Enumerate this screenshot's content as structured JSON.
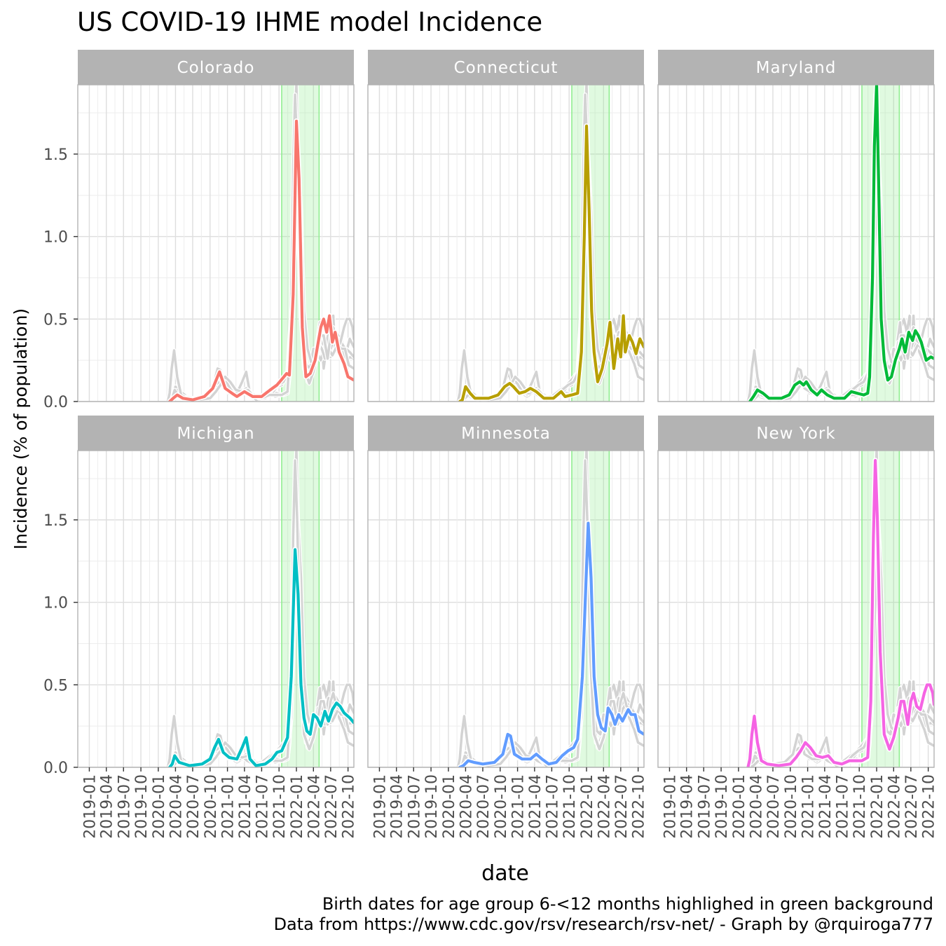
{
  "chart_data": {
    "type": "line",
    "title": "US COVID-19 IHME model Incidence",
    "xlabel": "date",
    "ylabel": "Incidence (% of population)",
    "ylim": [
      0,
      1.92
    ],
    "yticks": [
      0.0,
      0.5,
      1.0,
      1.5
    ],
    "ytick_labels": [
      "0.0",
      "0.5",
      "1.0",
      "1.5"
    ],
    "x_range": [
      "2018-11-01",
      "2022-11-01"
    ],
    "xticks": [
      "2019-01",
      "2019-04",
      "2019-07",
      "2019-10",
      "2020-01",
      "2020-04",
      "2020-07",
      "2020-10",
      "2021-01",
      "2021-04",
      "2021-07",
      "2021-10",
      "2022-01",
      "2022-04",
      "2022-07",
      "2022-10"
    ],
    "highlight": {
      "start": "2021-10-15",
      "end": "2022-05-01",
      "color": "#90ee90"
    },
    "grid": true,
    "background_series_color": "#d3d3d3",
    "panels": [
      {
        "name": "Colorado",
        "color": "#F8766D",
        "points": [
          [
            "2020-03-01",
            0.0
          ],
          [
            "2020-03-20",
            0.02
          ],
          [
            "2020-04-10",
            0.04
          ],
          [
            "2020-05-10",
            0.02
          ],
          [
            "2020-07-01",
            0.01
          ],
          [
            "2020-09-01",
            0.03
          ],
          [
            "2020-10-15",
            0.08
          ],
          [
            "2020-11-20",
            0.18
          ],
          [
            "2020-12-20",
            0.08
          ],
          [
            "2021-01-25",
            0.05
          ],
          [
            "2021-02-20",
            0.03
          ],
          [
            "2021-04-01",
            0.06
          ],
          [
            "2021-05-15",
            0.03
          ],
          [
            "2021-07-01",
            0.03
          ],
          [
            "2021-08-15",
            0.07
          ],
          [
            "2021-09-20",
            0.1
          ],
          [
            "2021-10-20",
            0.14
          ],
          [
            "2021-11-10",
            0.17
          ],
          [
            "2021-11-25",
            0.16
          ],
          [
            "2021-12-15",
            0.65
          ],
          [
            "2022-01-01",
            1.7
          ],
          [
            "2022-01-15",
            1.35
          ],
          [
            "2022-02-01",
            0.45
          ],
          [
            "2022-02-20",
            0.15
          ],
          [
            "2022-03-15",
            0.17
          ],
          [
            "2022-04-10",
            0.25
          ],
          [
            "2022-05-10",
            0.45
          ],
          [
            "2022-05-25",
            0.5
          ],
          [
            "2022-06-10",
            0.42
          ],
          [
            "2022-06-25",
            0.52
          ],
          [
            "2022-07-10",
            0.36
          ],
          [
            "2022-07-25",
            0.42
          ],
          [
            "2022-08-15",
            0.3
          ],
          [
            "2022-09-10",
            0.23
          ],
          [
            "2022-10-01",
            0.15
          ],
          [
            "2022-11-01",
            0.13
          ]
        ]
      },
      {
        "name": "Connecticut",
        "color": "#B79F00",
        "points": [
          [
            "2020-03-01",
            0.0
          ],
          [
            "2020-03-15",
            0.01
          ],
          [
            "2020-04-01",
            0.09
          ],
          [
            "2020-04-25",
            0.05
          ],
          [
            "2020-05-20",
            0.02
          ],
          [
            "2020-08-01",
            0.02
          ],
          [
            "2020-09-20",
            0.04
          ],
          [
            "2020-10-25",
            0.09
          ],
          [
            "2020-11-20",
            0.11
          ],
          [
            "2020-12-10",
            0.09
          ],
          [
            "2021-01-10",
            0.05
          ],
          [
            "2021-02-10",
            0.06
          ],
          [
            "2021-03-10",
            0.08
          ],
          [
            "2021-04-10",
            0.06
          ],
          [
            "2021-05-20",
            0.02
          ],
          [
            "2021-07-10",
            0.02
          ],
          [
            "2021-08-20",
            0.06
          ],
          [
            "2021-09-10",
            0.03
          ],
          [
            "2021-10-15",
            0.04
          ],
          [
            "2021-11-15",
            0.05
          ],
          [
            "2021-12-05",
            0.3
          ],
          [
            "2021-12-20",
            1.0
          ],
          [
            "2022-01-01",
            1.67
          ],
          [
            "2022-01-15",
            1.15
          ],
          [
            "2022-01-28",
            0.55
          ],
          [
            "2022-02-10",
            0.3
          ],
          [
            "2022-03-01",
            0.12
          ],
          [
            "2022-03-25",
            0.2
          ],
          [
            "2022-04-20",
            0.35
          ],
          [
            "2022-05-05",
            0.48
          ],
          [
            "2022-05-25",
            0.2
          ],
          [
            "2022-06-15",
            0.38
          ],
          [
            "2022-07-01",
            0.27
          ],
          [
            "2022-07-15",
            0.52
          ],
          [
            "2022-07-25",
            0.3
          ],
          [
            "2022-08-15",
            0.4
          ],
          [
            "2022-09-01",
            0.36
          ],
          [
            "2022-09-20",
            0.29
          ],
          [
            "2022-10-10",
            0.38
          ],
          [
            "2022-11-01",
            0.33
          ]
        ]
      },
      {
        "name": "Maryland",
        "color": "#00BA38",
        "points": [
          [
            "2020-03-01",
            0.0
          ],
          [
            "2020-03-20",
            0.03
          ],
          [
            "2020-04-10",
            0.07
          ],
          [
            "2020-05-10",
            0.05
          ],
          [
            "2020-06-10",
            0.02
          ],
          [
            "2020-08-15",
            0.02
          ],
          [
            "2020-09-25",
            0.04
          ],
          [
            "2020-10-25",
            0.1
          ],
          [
            "2020-11-20",
            0.12
          ],
          [
            "2020-12-10",
            0.1
          ],
          [
            "2020-12-25",
            0.12
          ],
          [
            "2021-01-20",
            0.07
          ],
          [
            "2021-02-20",
            0.04
          ],
          [
            "2021-03-15",
            0.07
          ],
          [
            "2021-04-15",
            0.04
          ],
          [
            "2021-05-20",
            0.02
          ],
          [
            "2021-07-15",
            0.02
          ],
          [
            "2021-08-20",
            0.06
          ],
          [
            "2021-09-20",
            0.05
          ],
          [
            "2021-10-25",
            0.04
          ],
          [
            "2021-11-15",
            0.05
          ],
          [
            "2021-11-25",
            0.15
          ],
          [
            "2021-12-10",
            0.75
          ],
          [
            "2021-12-20",
            1.55
          ],
          [
            "2022-01-01",
            1.93
          ],
          [
            "2022-01-12",
            1.3
          ],
          [
            "2022-01-25",
            0.5
          ],
          [
            "2022-02-10",
            0.25
          ],
          [
            "2022-03-01",
            0.13
          ],
          [
            "2022-03-20",
            0.15
          ],
          [
            "2022-04-10",
            0.25
          ],
          [
            "2022-05-01",
            0.32
          ],
          [
            "2022-05-15",
            0.38
          ],
          [
            "2022-06-01",
            0.3
          ],
          [
            "2022-06-20",
            0.42
          ],
          [
            "2022-07-10",
            0.37
          ],
          [
            "2022-07-25",
            0.43
          ],
          [
            "2022-08-10",
            0.4
          ],
          [
            "2022-08-25",
            0.36
          ],
          [
            "2022-09-20",
            0.25
          ],
          [
            "2022-10-15",
            0.27
          ],
          [
            "2022-11-01",
            0.26
          ]
        ]
      },
      {
        "name": "Michigan",
        "color": "#00BFC4",
        "points": [
          [
            "2020-03-01",
            0.0
          ],
          [
            "2020-03-15",
            0.02
          ],
          [
            "2020-03-28",
            0.07
          ],
          [
            "2020-04-20",
            0.03
          ],
          [
            "2020-06-15",
            0.01
          ],
          [
            "2020-08-20",
            0.02
          ],
          [
            "2020-10-01",
            0.05
          ],
          [
            "2020-10-25",
            0.12
          ],
          [
            "2020-11-15",
            0.17
          ],
          [
            "2020-12-10",
            0.09
          ],
          [
            "2021-01-10",
            0.06
          ],
          [
            "2021-02-20",
            0.05
          ],
          [
            "2021-03-20",
            0.12
          ],
          [
            "2021-04-10",
            0.18
          ],
          [
            "2021-04-30",
            0.05
          ],
          [
            "2021-06-01",
            0.01
          ],
          [
            "2021-07-20",
            0.02
          ],
          [
            "2021-08-25",
            0.05
          ],
          [
            "2021-09-20",
            0.09
          ],
          [
            "2021-10-15",
            0.1
          ],
          [
            "2021-11-15",
            0.18
          ],
          [
            "2021-12-05",
            0.55
          ],
          [
            "2021-12-25",
            1.32
          ],
          [
            "2022-01-10",
            1.05
          ],
          [
            "2022-01-25",
            0.5
          ],
          [
            "2022-02-10",
            0.3
          ],
          [
            "2022-02-25",
            0.22
          ],
          [
            "2022-03-15",
            0.2
          ],
          [
            "2022-04-01",
            0.32
          ],
          [
            "2022-04-20",
            0.3
          ],
          [
            "2022-05-10",
            0.25
          ],
          [
            "2022-06-01",
            0.34
          ],
          [
            "2022-06-20",
            0.28
          ],
          [
            "2022-07-10",
            0.35
          ],
          [
            "2022-08-01",
            0.39
          ],
          [
            "2022-08-20",
            0.37
          ],
          [
            "2022-09-10",
            0.33
          ],
          [
            "2022-10-10",
            0.3
          ],
          [
            "2022-11-01",
            0.27
          ]
        ]
      },
      {
        "name": "Minnesota",
        "color": "#619CFF",
        "points": [
          [
            "2020-03-01",
            0.0
          ],
          [
            "2020-03-20",
            0.01
          ],
          [
            "2020-04-15",
            0.04
          ],
          [
            "2020-05-15",
            0.03
          ],
          [
            "2020-07-01",
            0.02
          ],
          [
            "2020-09-01",
            0.03
          ],
          [
            "2020-10-15",
            0.08
          ],
          [
            "2020-11-10",
            0.2
          ],
          [
            "2020-11-25",
            0.19
          ],
          [
            "2020-12-15",
            0.08
          ],
          [
            "2021-01-25",
            0.05
          ],
          [
            "2021-03-10",
            0.05
          ],
          [
            "2021-04-10",
            0.08
          ],
          [
            "2021-05-10",
            0.05
          ],
          [
            "2021-06-15",
            0.02
          ],
          [
            "2021-07-25",
            0.03
          ],
          [
            "2021-08-25",
            0.07
          ],
          [
            "2021-09-25",
            0.1
          ],
          [
            "2021-10-25",
            0.12
          ],
          [
            "2021-11-15",
            0.17
          ],
          [
            "2021-12-10",
            0.55
          ],
          [
            "2022-01-10",
            1.48
          ],
          [
            "2022-01-25",
            1.15
          ],
          [
            "2022-02-10",
            0.55
          ],
          [
            "2022-03-01",
            0.32
          ],
          [
            "2022-03-20",
            0.24
          ],
          [
            "2022-04-10",
            0.22
          ],
          [
            "2022-04-25",
            0.36
          ],
          [
            "2022-05-15",
            0.32
          ],
          [
            "2022-06-01",
            0.26
          ],
          [
            "2022-06-20",
            0.32
          ],
          [
            "2022-07-10",
            0.28
          ],
          [
            "2022-08-10",
            0.35
          ],
          [
            "2022-08-25",
            0.32
          ],
          [
            "2022-09-15",
            0.32
          ],
          [
            "2022-10-05",
            0.22
          ],
          [
            "2022-11-01",
            0.2
          ]
        ]
      },
      {
        "name": "New York",
        "color": "#F564E3",
        "points": [
          [
            "2020-02-20",
            0.0
          ],
          [
            "2020-03-01",
            0.05
          ],
          [
            "2020-03-12",
            0.2
          ],
          [
            "2020-03-25",
            0.31
          ],
          [
            "2020-04-10",
            0.15
          ],
          [
            "2020-05-01",
            0.04
          ],
          [
            "2020-06-01",
            0.02
          ],
          [
            "2020-08-01",
            0.01
          ],
          [
            "2020-10-01",
            0.02
          ],
          [
            "2020-11-01",
            0.06
          ],
          [
            "2020-11-25",
            0.1
          ],
          [
            "2020-12-20",
            0.15
          ],
          [
            "2021-01-15",
            0.12
          ],
          [
            "2021-02-15",
            0.07
          ],
          [
            "2021-03-20",
            0.06
          ],
          [
            "2021-04-20",
            0.07
          ],
          [
            "2021-05-20",
            0.03
          ],
          [
            "2021-07-01",
            0.02
          ],
          [
            "2021-08-10",
            0.04
          ],
          [
            "2021-09-10",
            0.04
          ],
          [
            "2021-10-15",
            0.04
          ],
          [
            "2021-11-15",
            0.06
          ],
          [
            "2021-12-01",
            0.4
          ],
          [
            "2021-12-15",
            1.4
          ],
          [
            "2021-12-25",
            1.86
          ],
          [
            "2022-01-05",
            1.5
          ],
          [
            "2022-01-20",
            0.7
          ],
          [
            "2022-02-10",
            0.2
          ],
          [
            "2022-03-10",
            0.11
          ],
          [
            "2022-04-01",
            0.18
          ],
          [
            "2022-04-25",
            0.3
          ],
          [
            "2022-05-10",
            0.4
          ],
          [
            "2022-05-25",
            0.4
          ],
          [
            "2022-06-15",
            0.26
          ],
          [
            "2022-07-01",
            0.4
          ],
          [
            "2022-07-15",
            0.45
          ],
          [
            "2022-08-01",
            0.37
          ],
          [
            "2022-08-20",
            0.35
          ],
          [
            "2022-09-10",
            0.45
          ],
          [
            "2022-09-25",
            0.5
          ],
          [
            "2022-10-10",
            0.5
          ],
          [
            "2022-10-25",
            0.45
          ],
          [
            "2022-11-01",
            0.38
          ]
        ]
      }
    ],
    "caption": [
      "Birth dates for age group 6-<12 months highlighed in green background",
      "Data from https://www.cdc.gov/rsv/research/rsv-net/ - Graph by @rquiroga777"
    ]
  }
}
